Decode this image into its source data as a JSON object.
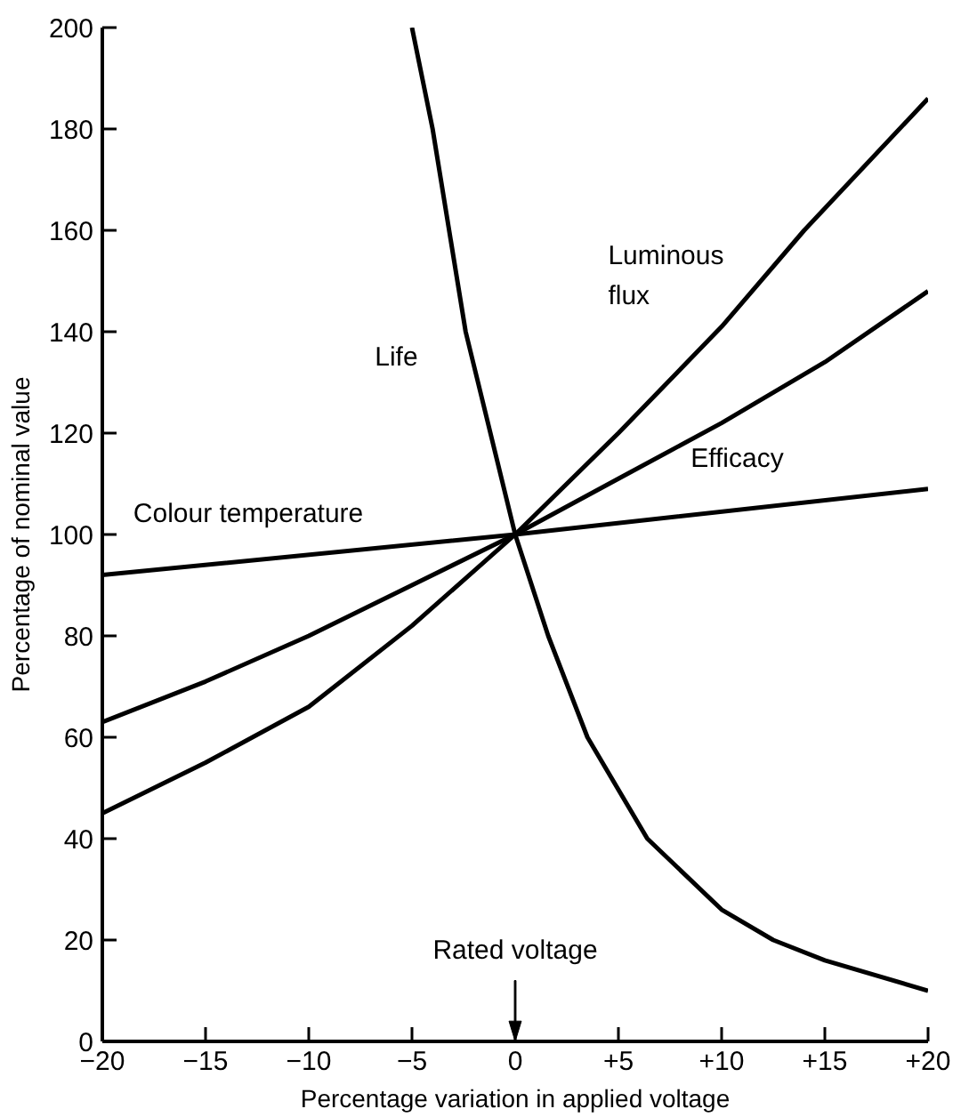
{
  "chart_data": {
    "type": "line",
    "xlabel": "Percentage variation in applied voltage",
    "ylabel": "Percentage of nominal value",
    "xlim": [
      -20,
      20
    ],
    "ylim": [
      0,
      200
    ],
    "xticks": [
      {
        "value": -20,
        "label": "−20"
      },
      {
        "value": -15,
        "label": "−15"
      },
      {
        "value": -10,
        "label": "−10"
      },
      {
        "value": -5,
        "label": "−5"
      },
      0,
      {
        "value": 5,
        "label": "+5"
      },
      {
        "value": 10,
        "label": "+10"
      },
      {
        "value": 15,
        "label": "+15"
      },
      {
        "value": 20,
        "label": "+20"
      }
    ],
    "yticks": [
      0,
      20,
      40,
      60,
      80,
      100,
      120,
      140,
      160,
      180,
      200
    ],
    "grid": false,
    "marker": "none",
    "line_style": "solid",
    "series": [
      {
        "name": "Luminous flux",
        "color": "#000000",
        "x": [
          -20,
          -15,
          -10,
          -5,
          0,
          5,
          10,
          14,
          20
        ],
        "values": [
          45,
          55,
          66,
          82,
          100,
          120,
          141,
          160,
          186
        ]
      },
      {
        "name": "Efficacy",
        "color": "#000000",
        "x": [
          -20,
          -15,
          -10,
          -5,
          0,
          5,
          10,
          15,
          20
        ],
        "values": [
          63,
          71,
          80,
          90,
          100,
          111,
          122,
          134,
          148
        ]
      },
      {
        "name": "Colour temperature",
        "color": "#000000",
        "x": [
          -20,
          0,
          20
        ],
        "values": [
          92,
          100,
          109
        ]
      },
      {
        "name": "Life",
        "color": "#000000",
        "x": [
          -5,
          -4,
          -2.4,
          0,
          1.6,
          3.5,
          6.4,
          10,
          12.5,
          15,
          20
        ],
        "values": [
          200,
          180,
          140,
          100,
          80,
          60,
          40,
          26,
          20,
          16,
          10
        ]
      }
    ],
    "ref_lines": [
      {
        "axis": "x",
        "value": 0,
        "label": "Rated voltage"
      }
    ]
  }
}
